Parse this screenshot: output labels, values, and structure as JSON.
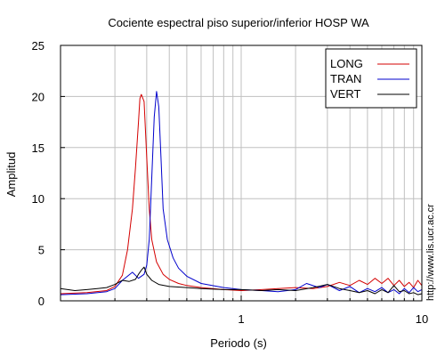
{
  "chart_data": {
    "type": "line",
    "title": "Cociente espectral piso superior/inferior  HOSP WA",
    "xlabel": "Periodo (s)",
    "ylabel": "Amplitud",
    "x_scale": "log",
    "xlim": [
      0.1,
      10
    ],
    "ylim": [
      0,
      25
    ],
    "x_tick_labels": [
      "1",
      "10"
    ],
    "y_ticks": [
      0,
      5,
      10,
      15,
      20,
      25
    ],
    "grid": true,
    "legend_position": "top-right",
    "credit": "http://www.lis.ucr.ac.cr",
    "series": [
      {
        "name": "LONG",
        "color": "#d40000",
        "x": [
          0.1,
          0.14,
          0.18,
          0.2,
          0.22,
          0.235,
          0.25,
          0.26,
          0.27,
          0.275,
          0.28,
          0.29,
          0.3,
          0.31,
          0.32,
          0.34,
          0.37,
          0.4,
          0.45,
          0.5,
          0.6,
          0.8,
          1.0,
          1.3,
          1.6,
          2.0,
          2.5,
          3.0,
          3.5,
          4.0,
          4.5,
          5.0,
          5.5,
          6.0,
          6.5,
          7.0,
          7.5,
          8.0,
          8.5,
          9.0,
          9.5,
          10
        ],
        "y": [
          0.7,
          0.8,
          1.0,
          1.4,
          2.5,
          5.0,
          9.0,
          13.0,
          17.5,
          19.8,
          20.2,
          19.5,
          14.0,
          9.0,
          6.0,
          3.8,
          2.6,
          2.1,
          1.7,
          1.5,
          1.3,
          1.1,
          1.0,
          1.1,
          1.2,
          1.3,
          1.2,
          1.4,
          1.8,
          1.5,
          2.0,
          1.6,
          2.2,
          1.7,
          2.2,
          1.5,
          2.0,
          1.4,
          1.8,
          1.3,
          2.0,
          1.5
        ]
      },
      {
        "name": "TRAN",
        "color": "#0000cc",
        "x": [
          0.1,
          0.14,
          0.18,
          0.2,
          0.22,
          0.25,
          0.27,
          0.29,
          0.3,
          0.31,
          0.32,
          0.33,
          0.34,
          0.35,
          0.36,
          0.37,
          0.39,
          0.42,
          0.45,
          0.5,
          0.6,
          0.8,
          1.0,
          1.3,
          1.6,
          2.0,
          2.3,
          2.7,
          3.0,
          3.5,
          4.0,
          4.5,
          5.0,
          5.5,
          6.0,
          6.5,
          7.0,
          7.5,
          8.0,
          8.5,
          9.0,
          9.5,
          10
        ],
        "y": [
          0.6,
          0.7,
          0.9,
          1.2,
          2.0,
          2.8,
          2.2,
          2.6,
          3.5,
          6.0,
          12.0,
          18.0,
          20.5,
          19.0,
          14.0,
          9.0,
          6.0,
          4.2,
          3.2,
          2.4,
          1.7,
          1.3,
          1.1,
          1.0,
          0.9,
          1.1,
          1.7,
          1.3,
          1.6,
          1.0,
          1.4,
          0.8,
          1.2,
          0.9,
          1.3,
          0.8,
          1.1,
          0.7,
          1.2,
          0.8,
          1.3,
          0.9,
          1.1
        ]
      },
      {
        "name": "VERT",
        "color": "#000000",
        "x": [
          0.1,
          0.12,
          0.14,
          0.16,
          0.18,
          0.2,
          0.22,
          0.24,
          0.26,
          0.27,
          0.28,
          0.29,
          0.3,
          0.32,
          0.35,
          0.4,
          0.5,
          0.6,
          0.8,
          1.0,
          1.3,
          1.6,
          2.0,
          2.5,
          3.0,
          3.5,
          4.0,
          4.5,
          5.0,
          5.5,
          6.0,
          6.5,
          7.0,
          7.5,
          8.0,
          8.5,
          9.0,
          9.5,
          10
        ],
        "y": [
          1.2,
          1.0,
          1.1,
          1.2,
          1.3,
          1.6,
          2.0,
          1.9,
          2.1,
          2.6,
          3.0,
          3.3,
          2.6,
          2.0,
          1.6,
          1.4,
          1.3,
          1.2,
          1.1,
          1.1,
          1.0,
          1.1,
          1.0,
          1.3,
          1.6,
          1.2,
          1.0,
          0.8,
          1.0,
          0.7,
          1.1,
          0.8,
          1.5,
          0.9,
          1.0,
          0.7,
          0.8,
          0.6,
          0.7
        ]
      }
    ]
  }
}
